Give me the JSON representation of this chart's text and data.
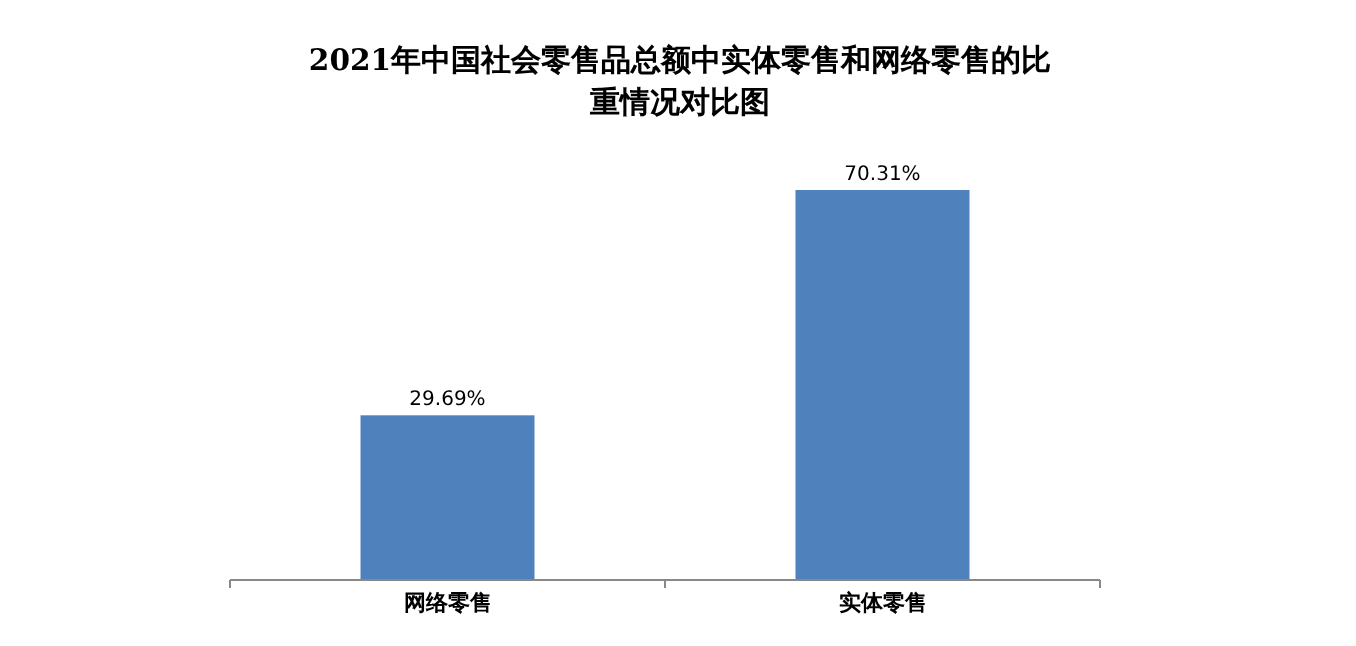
{
  "chart_data": {
    "type": "bar",
    "title": "2021年中国社会零售品总额中实体零售和网络零售的比重情况对比图",
    "categories": [
      "网络零售",
      "实体零售"
    ],
    "values": [
      29.69,
      70.31
    ],
    "color": "#4f81bd",
    "value_labels": [
      "29.69%",
      "70.31%"
    ]
  }
}
